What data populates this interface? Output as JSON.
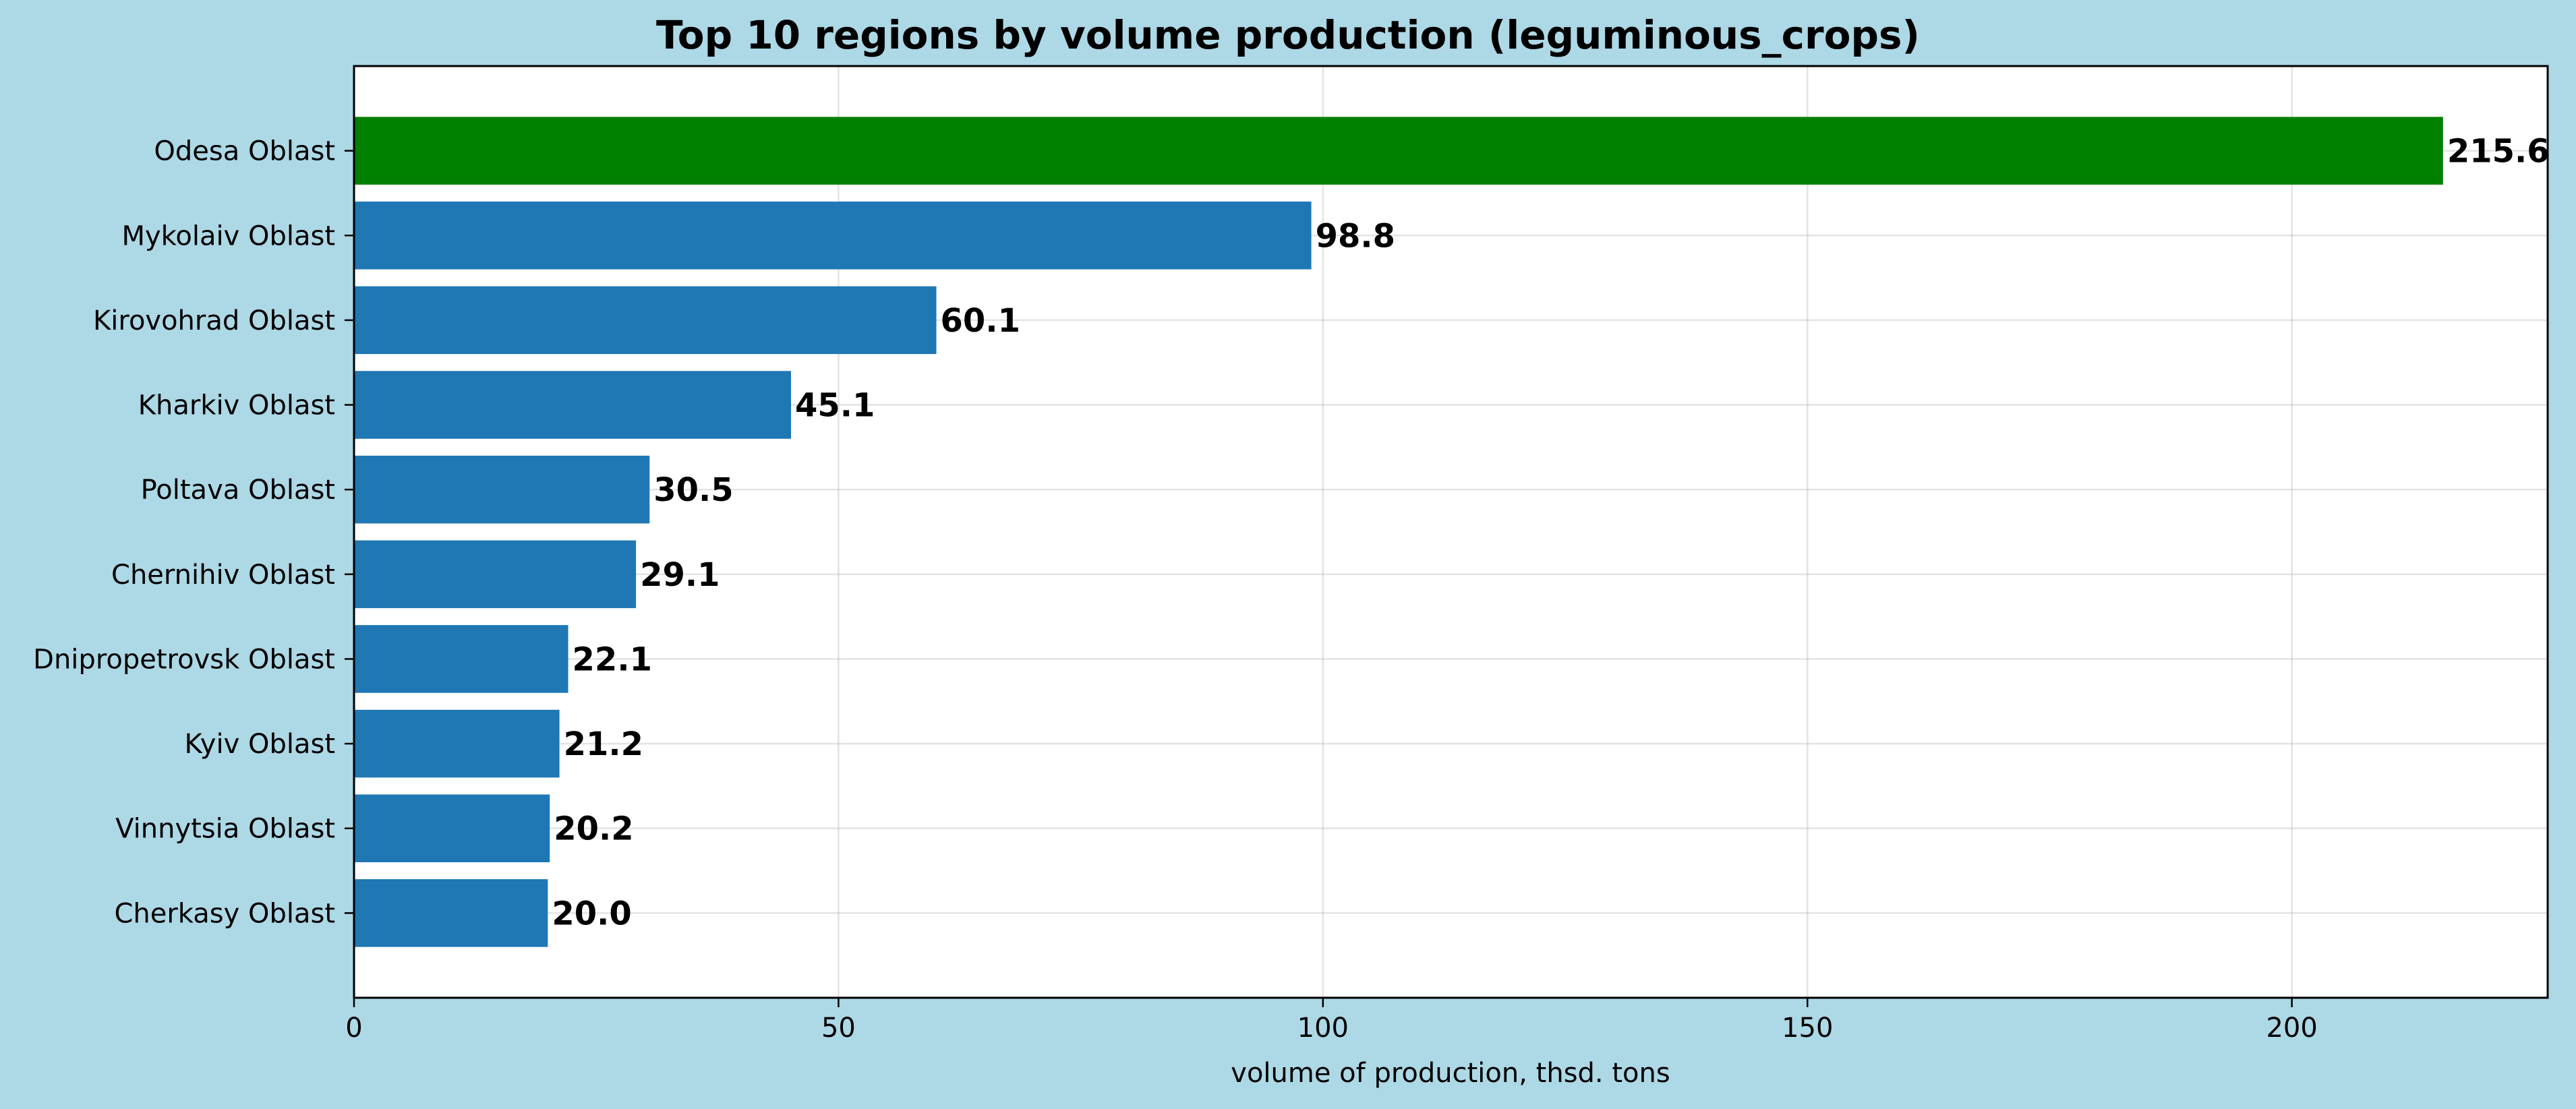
{
  "chart_data": {
    "type": "bar",
    "orientation": "horizontal",
    "title": "Top 10 regions by volume production (leguminous_crops)",
    "xlabel": "volume of production, thsd. tons",
    "ylabel": "",
    "xlim": [
      0,
      226.4
    ],
    "xticks": [
      0,
      50,
      100,
      150,
      200
    ],
    "xtick_labels": [
      "0",
      "50",
      "100",
      "150",
      "200"
    ],
    "grid": true,
    "categories": [
      "Odesa Oblast",
      "Mykolaiv Oblast",
      "Kirovohrad Oblast",
      "Kharkiv Oblast",
      "Poltava Oblast",
      "Chernihiv Oblast",
      "Dnipropetrovsk Oblast",
      "Kyiv Oblast",
      "Vinnytsia Oblast",
      "Cherkasy Oblast"
    ],
    "values": [
      215.6,
      98.8,
      60.1,
      45.1,
      30.5,
      29.1,
      22.1,
      21.2,
      20.2,
      20.0
    ],
    "data_labels": [
      "215.6",
      "98.8",
      "60.1",
      "45.1",
      "30.5",
      "29.1",
      "22.1",
      "21.2",
      "20.2",
      "20.0"
    ],
    "colors": {
      "background": "#add8e6",
      "plot_background": "#ffffff",
      "highlight_bar": "#008000",
      "default_bar": "#1f77b4"
    },
    "highlight_index": 0
  }
}
